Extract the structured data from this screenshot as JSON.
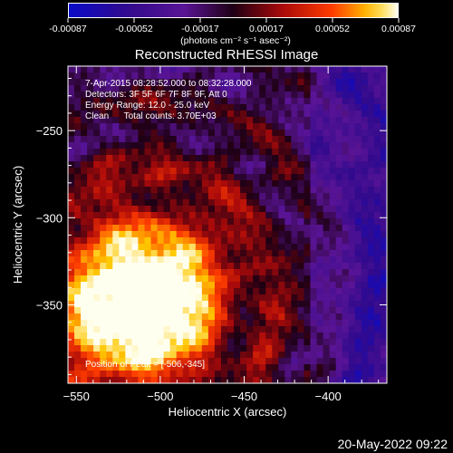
{
  "colorbar": {
    "labels": [
      "-0.00087",
      "-0.00052",
      "-0.00017",
      "0.00017",
      "0.00052",
      "0.00087"
    ],
    "units": "(photons cm⁻² s⁻¹ asec⁻²)"
  },
  "chart_data": {
    "type": "heatmap",
    "title": "Reconstructed RHESSI Image",
    "xlabel": "Heliocentric X (arcsec)",
    "ylabel": "Heliocentric Y (arcsec)",
    "xlim": [
      -555,
      -365
    ],
    "ylim": [
      -395,
      -213
    ],
    "x_ticks": [
      -550,
      -500,
      -450,
      -400
    ],
    "y_ticks": [
      -250,
      -300,
      -350
    ],
    "colorbar_range": [
      -0.00087,
      0.00087
    ],
    "colormap": "blue-purple-red-yellow-white",
    "annotations": {
      "time_range": "7-Apr-2015 08:28:52.000 to 08:32:28.000",
      "detectors": "Detectors: 3F 5F 6F 7F 8F 9F, Att 0",
      "energy": "Energy Range: 12.0 - 25.0 keV",
      "method_line": "Clean      Total counts: 3.70E+03",
      "peak": "Position of Peak = [-506,-345]"
    },
    "peak": [
      -506,
      -345
    ]
  },
  "footer_date": "20-May-2022 09:22"
}
